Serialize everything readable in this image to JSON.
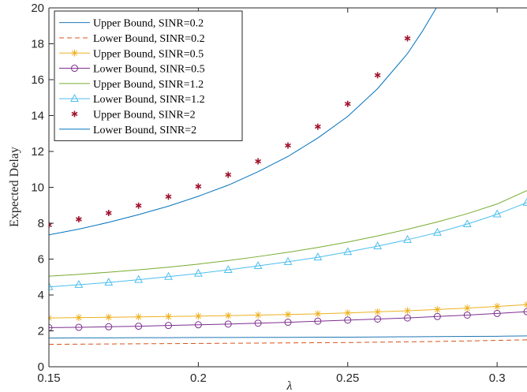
{
  "chart_data": {
    "type": "line",
    "xlabel": "λ",
    "ylabel": "Expected Delay",
    "xlim": [
      0.15,
      0.31
    ],
    "ylim": [
      0,
      20
    ],
    "xticks": [
      0.15,
      0.2,
      0.25,
      0.3
    ],
    "xtick_labels": [
      "0.15",
      "0.2",
      "0.25",
      "0.3"
    ],
    "yticks": [
      0,
      2,
      4,
      6,
      8,
      10,
      12,
      14,
      16,
      18,
      20
    ],
    "ytick_labels": [
      "0",
      "2",
      "4",
      "6",
      "8",
      "10",
      "12",
      "14",
      "16",
      "18",
      "20"
    ],
    "grid": false,
    "legend_position": "top-left",
    "series": [
      {
        "name": "Upper Bound, SINR=0.2",
        "color": "#1f77b4",
        "line": "solid",
        "marker": "none",
        "x": [
          0.15,
          0.16,
          0.17,
          0.18,
          0.19,
          0.2,
          0.21,
          0.22,
          0.23,
          0.24,
          0.25,
          0.26,
          0.27,
          0.28,
          0.29,
          0.3,
          0.31
        ],
        "y": [
          1.6,
          1.61,
          1.61,
          1.62,
          1.62,
          1.63,
          1.63,
          1.64,
          1.64,
          1.65,
          1.65,
          1.66,
          1.67,
          1.68,
          1.69,
          1.7,
          1.72
        ]
      },
      {
        "name": "Lower Bound, SINR=0.2",
        "color": "#d95319",
        "line": "dashed",
        "marker": "none",
        "x": [
          0.15,
          0.16,
          0.17,
          0.18,
          0.19,
          0.2,
          0.21,
          0.22,
          0.23,
          0.24,
          0.25,
          0.26,
          0.27,
          0.28,
          0.29,
          0.3,
          0.31
        ],
        "y": [
          1.25,
          1.26,
          1.27,
          1.28,
          1.29,
          1.3,
          1.31,
          1.32,
          1.33,
          1.34,
          1.35,
          1.37,
          1.39,
          1.41,
          1.44,
          1.47,
          1.5
        ]
      },
      {
        "name": "Upper Bound, SINR=0.5",
        "color": "#edb120",
        "line": "solid",
        "marker": "star",
        "x": [
          0.15,
          0.16,
          0.17,
          0.18,
          0.19,
          0.2,
          0.21,
          0.22,
          0.23,
          0.24,
          0.25,
          0.26,
          0.27,
          0.28,
          0.29,
          0.3,
          0.31
        ],
        "y": [
          2.72,
          2.74,
          2.76,
          2.78,
          2.8,
          2.82,
          2.85,
          2.88,
          2.91,
          2.95,
          3.0,
          3.06,
          3.12,
          3.19,
          3.27,
          3.36,
          3.46
        ]
      },
      {
        "name": "Lower Bound, SINR=0.5",
        "color": "#7e2f8e",
        "line": "solid",
        "marker": "circle",
        "x": [
          0.15,
          0.16,
          0.17,
          0.18,
          0.19,
          0.2,
          0.21,
          0.22,
          0.23,
          0.24,
          0.25,
          0.26,
          0.27,
          0.28,
          0.29,
          0.3,
          0.31
        ],
        "y": [
          2.18,
          2.2,
          2.23,
          2.26,
          2.3,
          2.34,
          2.38,
          2.43,
          2.48,
          2.54,
          2.6,
          2.66,
          2.72,
          2.8,
          2.88,
          2.97,
          3.07
        ]
      },
      {
        "name": "Upper Bound, SINR=1.2",
        "color": "#77ac30",
        "line": "solid",
        "marker": "none",
        "x": [
          0.15,
          0.16,
          0.17,
          0.18,
          0.19,
          0.2,
          0.21,
          0.22,
          0.23,
          0.24,
          0.25,
          0.26,
          0.27,
          0.28,
          0.29,
          0.3,
          0.31
        ],
        "y": [
          5.05,
          5.15,
          5.27,
          5.4,
          5.55,
          5.72,
          5.92,
          6.14,
          6.38,
          6.65,
          6.95,
          7.29,
          7.66,
          8.07,
          8.53,
          9.07,
          9.82
        ]
      },
      {
        "name": "Lower Bound, SINR=1.2",
        "color": "#4dbeee",
        "line": "solid",
        "marker": "triangle",
        "x": [
          0.15,
          0.16,
          0.17,
          0.18,
          0.19,
          0.2,
          0.21,
          0.22,
          0.23,
          0.24,
          0.25,
          0.26,
          0.27,
          0.28,
          0.29,
          0.3,
          0.31
        ],
        "y": [
          4.45,
          4.57,
          4.7,
          4.85,
          5.02,
          5.2,
          5.4,
          5.62,
          5.85,
          6.1,
          6.4,
          6.72,
          7.08,
          7.48,
          7.95,
          8.5,
          9.15
        ]
      },
      {
        "name": "Upper Bound, SINR=2",
        "color": "#a2142f",
        "line": "none",
        "marker": "asterisk",
        "x": [
          0.15,
          0.16,
          0.17,
          0.18,
          0.19,
          0.2,
          0.21,
          0.22,
          0.23,
          0.24,
          0.25,
          0.26,
          0.27
        ],
        "y": [
          7.9,
          8.22,
          8.57,
          8.98,
          9.48,
          10.05,
          10.7,
          11.45,
          12.33,
          13.38,
          14.65,
          16.25,
          18.3
        ]
      },
      {
        "name": "Lower Bound, SINR=2",
        "color": "#0072bd",
        "line": "solid",
        "marker": "none",
        "x": [
          0.15,
          0.16,
          0.17,
          0.18,
          0.19,
          0.2,
          0.21,
          0.22,
          0.23,
          0.24,
          0.25,
          0.26,
          0.27,
          0.275,
          0.28
        ],
        "y": [
          7.35,
          7.67,
          8.05,
          8.48,
          8.95,
          9.5,
          10.12,
          10.87,
          11.72,
          12.75,
          13.95,
          15.5,
          17.45,
          18.7,
          20.1
        ]
      }
    ]
  }
}
